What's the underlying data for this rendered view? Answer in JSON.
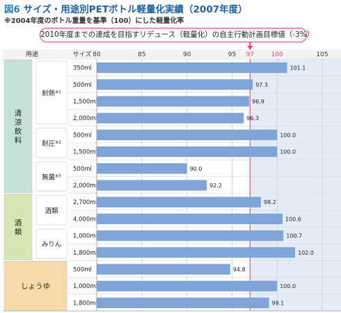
{
  "figure": {
    "number": "図6",
    "title": "サイズ・用途別PETボトル軽量化実績（2007年度）",
    "subtitle": "※2004年度のボトル重量を基準（100）にした軽量化率",
    "target_label": "2010年度までの達成を目指すリデュース（軽量化）の自主行動計画目標値（-3%）"
  },
  "headers": {
    "use": "用途",
    "size": "サイズ"
  },
  "groups": [
    {
      "label": "清涼飲料",
      "color": "#c5e2d6",
      "sub": [
        {
          "label": "耐熱",
          "note": "※1",
          "rows": [
            0,
            3
          ]
        },
        {
          "label": "耐圧",
          "note": "※2",
          "rows": [
            4,
            5
          ]
        },
        {
          "label": "無菌",
          "note": "※3",
          "rows": [
            6,
            7
          ]
        }
      ],
      "rows": [
        0,
        7
      ]
    },
    {
      "label": "酒類",
      "color": "#d7e7b4",
      "sub": [
        {
          "label": "酒類",
          "note": "",
          "rows": [
            8,
            9
          ]
        },
        {
          "label": "みりん",
          "note": "",
          "rows": [
            10,
            11
          ]
        }
      ],
      "rows": [
        8,
        11
      ]
    },
    {
      "label": "しょうゆ",
      "color": "#f8d9a8",
      "sub": [],
      "rows": [
        12,
        14
      ]
    }
  ],
  "chart_data": {
    "type": "bar",
    "orientation": "horizontal",
    "xlim": [
      80,
      105
    ],
    "xticks": [
      80,
      85,
      90,
      95,
      97,
      100,
      105
    ],
    "highlight_ticks": {
      "97": "#e8386d",
      "100": "#e8386d"
    },
    "reference_line": 97,
    "categories": [
      "350ml",
      "500ml",
      "1,500ml",
      "2,000ml",
      "500ml",
      "1,500ml",
      "500ml",
      "2,000ml",
      "2,700ml",
      "4,000ml",
      "1,000ml",
      "1,800ml",
      "500ml",
      "1,000ml",
      "1,800ml"
    ],
    "values": [
      101.1,
      97.3,
      96.9,
      96.3,
      100.0,
      100.0,
      90.0,
      92.2,
      98.2,
      100.6,
      100.7,
      102.0,
      94.8,
      100.0,
      99.1
    ],
    "value_labels": [
      "101.1",
      "97.3",
      "96.9",
      "96.3",
      "100.0",
      "100.0",
      "90.0",
      "92.2",
      "98.2",
      "100.6",
      "100.7",
      "102.0",
      "94.8",
      "100.0",
      "99.1"
    ],
    "bar_color": "#7ea4d8",
    "grid": true
  }
}
